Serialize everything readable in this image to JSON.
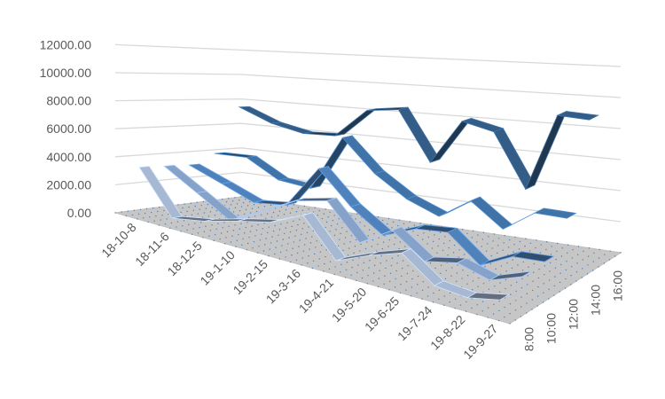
{
  "chart_data": {
    "type": "line-3d",
    "title": "",
    "categories": [
      "18-10-8",
      "18-11-6",
      "18-12-5",
      "19-1-10",
      "19-2-15",
      "19-3-16",
      "19-4-21",
      "19-5-20",
      "19-6-25",
      "19-7-24",
      "19-8-22",
      "19-9-27"
    ],
    "series_axis_labels": [
      "8:00",
      "10:00",
      "12:00",
      "14:00",
      "16:00"
    ],
    "y_ticks": [
      "0.00",
      "2000.00",
      "4000.00",
      "6000.00",
      "8000.00",
      "10000.00",
      "12000.00"
    ],
    "ylim": [
      0,
      12000
    ],
    "grid": true,
    "legend": "none",
    "series": [
      {
        "name": "8:00",
        "color": "#a7b8d3",
        "values": [
          3500,
          500,
          900,
          1500,
          2000,
          3000,
          600,
          1500,
          2200,
          700,
          500,
          900
        ]
      },
      {
        "name": "10:00",
        "color": "#86a2c9",
        "values": [
          3400,
          2000,
          600,
          1800,
          3000,
          3500,
          1200,
          2500,
          1000,
          1400,
          800,
          1500
        ]
      },
      {
        "name": "12:00",
        "color": "#4f82bb",
        "values": [
          3300,
          2400,
          1500,
          1800,
          4800,
          2600,
          1100,
          2000,
          2200,
          500,
          1500,
          1600
        ]
      },
      {
        "name": "14:00",
        "color": "#4073a8",
        "values": [
          4000,
          4100,
          2800,
          2600,
          6600,
          4400,
          3000,
          2200,
          3600,
          2100,
          3500,
          3500
        ]
      },
      {
        "name": "16:00",
        "color": "#335d86",
        "values": [
          7500,
          6500,
          6000,
          6100,
          8200,
          8500,
          5000,
          8100,
          7600,
          4000,
          9100,
          9000
        ]
      }
    ]
  }
}
